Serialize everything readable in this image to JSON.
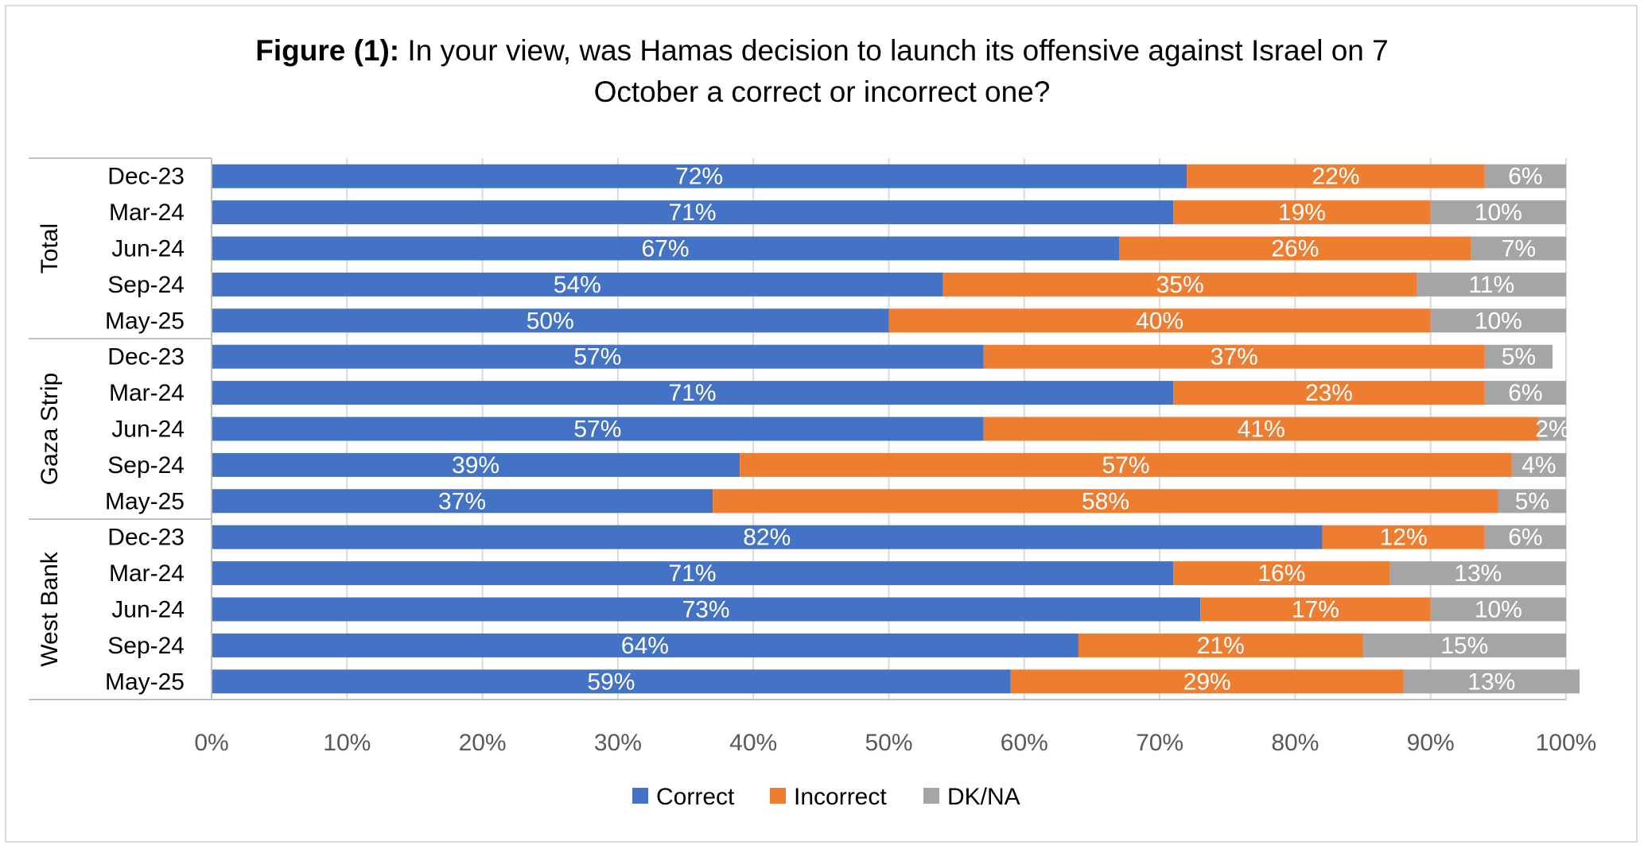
{
  "chart_data": {
    "type": "bar",
    "orientation": "horizontal",
    "stacked": true,
    "title_bold": "Figure (1):",
    "title_line1": " In your view, was Hamas decision to launch its offensive against Israel on 7",
    "title_line2": "October a correct or incorrect one?",
    "xlim": [
      0,
      100
    ],
    "x_ticks": [
      "0%",
      "10%",
      "20%",
      "30%",
      "40%",
      "50%",
      "60%",
      "70%",
      "80%",
      "90%",
      "100%"
    ],
    "grid": true,
    "legend_position": "bottom",
    "series": [
      {
        "name": "Correct",
        "color": "#4472C4"
      },
      {
        "name": "Incorrect",
        "color": "#ED7D31"
      },
      {
        "name": "DK/NA",
        "color": "#A5A5A5"
      }
    ],
    "groups": [
      {
        "name": "Total",
        "rows": [
          {
            "label": "Dec-23",
            "values": [
              72,
              22,
              6
            ]
          },
          {
            "label": "Mar-24",
            "values": [
              71,
              19,
              10
            ]
          },
          {
            "label": "Jun-24",
            "values": [
              67,
              26,
              7
            ]
          },
          {
            "label": "Sep-24",
            "values": [
              54,
              35,
              11
            ]
          },
          {
            "label": "May-25",
            "values": [
              50,
              40,
              10
            ]
          }
        ]
      },
      {
        "name": "Gaza Strip",
        "rows": [
          {
            "label": "Dec-23",
            "values": [
              57,
              37,
              5
            ]
          },
          {
            "label": "Mar-24",
            "values": [
              71,
              23,
              6
            ]
          },
          {
            "label": "Jun-24",
            "values": [
              57,
              41,
              2
            ]
          },
          {
            "label": "Sep-24",
            "values": [
              39,
              57,
              4
            ]
          },
          {
            "label": "May-25",
            "values": [
              37,
              58,
              5
            ]
          }
        ]
      },
      {
        "name": "West Bank",
        "rows": [
          {
            "label": "Dec-23",
            "values": [
              82,
              12,
              6
            ]
          },
          {
            "label": "Mar-24",
            "values": [
              71,
              16,
              13
            ]
          },
          {
            "label": "Jun-24",
            "values": [
              73,
              17,
              10
            ]
          },
          {
            "label": "Sep-24",
            "values": [
              64,
              21,
              15
            ]
          },
          {
            "label": "May-25",
            "values": [
              59,
              29,
              13
            ]
          }
        ]
      }
    ]
  }
}
